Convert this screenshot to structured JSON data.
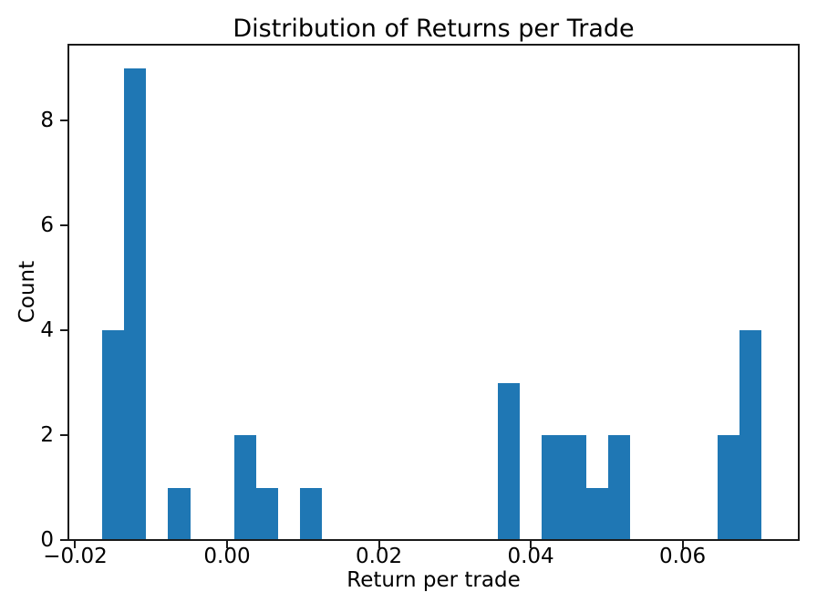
{
  "figure": {
    "title": "Distribution of Returns per Trade"
  },
  "colors": {
    "background": "#ffffff",
    "text": "#000000",
    "axis": "#1a1a1a",
    "bar": "#1f77b4"
  },
  "chart_data": {
    "type": "bar",
    "subtype": "histogram",
    "title": "Distribution of Returns per Trade",
    "xlabel": "Return per trade",
    "ylabel": "Count",
    "bar_color": "#1f77b4",
    "bin_start": -0.01645,
    "bin_width": 0.002896,
    "counts": [
      4,
      9,
      0,
      1,
      0,
      0,
      2,
      1,
      0,
      1,
      0,
      0,
      0,
      0,
      0,
      0,
      0,
      0,
      3,
      0,
      2,
      2,
      1,
      2,
      0,
      0,
      0,
      0,
      2,
      4
    ],
    "xlim": [
      -0.0209,
      0.0753
    ],
    "ylim": [
      0,
      9.45
    ],
    "xticks": [
      {
        "value": -0.02,
        "label": "−0.02"
      },
      {
        "value": 0.0,
        "label": "0.00"
      },
      {
        "value": 0.02,
        "label": "0.02"
      },
      {
        "value": 0.04,
        "label": "0.04"
      },
      {
        "value": 0.06,
        "label": "0.06"
      }
    ],
    "yticks": [
      {
        "value": 0,
        "label": "0"
      },
      {
        "value": 2,
        "label": "2"
      },
      {
        "value": 4,
        "label": "4"
      },
      {
        "value": 6,
        "label": "6"
      },
      {
        "value": 8,
        "label": "8"
      }
    ],
    "grid": false,
    "legend": "none"
  }
}
